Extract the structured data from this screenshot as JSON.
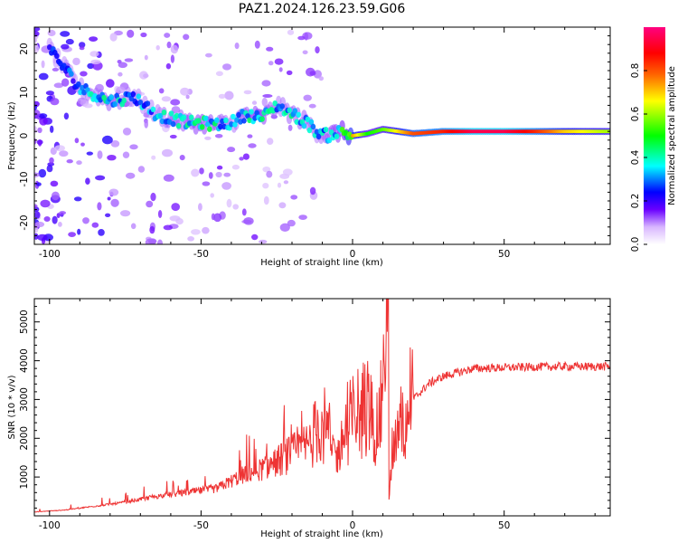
{
  "title": "PAZ1.2024.126.23.59.G06",
  "chart_data": [
    {
      "type": "heatmap",
      "xlabel": "Height of straight line (km)",
      "ylabel": "Frequency (Hz)",
      "xlim": [
        -105,
        85
      ],
      "ylim": [
        -25,
        25
      ],
      "xticks": [
        -100,
        -50,
        0,
        50
      ],
      "yticks": [
        -20,
        -10,
        0,
        10,
        20
      ],
      "grid": false,
      "colorbar": {
        "label": "Normalized spectral amplitude",
        "range": [
          0,
          1
        ],
        "ticks": [
          "0.0",
          "0.2",
          "0.4",
          "0.6",
          "0.8"
        ],
        "colors": [
          "#ffffff",
          "#d8b6ff",
          "#6a00ff",
          "#0000ff",
          "#00ffff",
          "#00ff00",
          "#ffff00",
          "#ff6600",
          "#ff0000",
          "#ff0080"
        ]
      },
      "ridge": [
        {
          "x": -100,
          "freq": 20,
          "amp": 0.2
        },
        {
          "x": -90,
          "freq": 11,
          "amp": 0.3
        },
        {
          "x": -80,
          "freq": 8,
          "amp": 0.35
        },
        {
          "x": -72,
          "freq": 9,
          "amp": 0.3
        },
        {
          "x": -65,
          "freq": 5,
          "amp": 0.3
        },
        {
          "x": -60,
          "freq": 4,
          "amp": 0.35
        },
        {
          "x": -55,
          "freq": 3,
          "amp": 0.35
        },
        {
          "x": -50,
          "freq": 3,
          "amp": 0.4
        },
        {
          "x": -45,
          "freq": 2.5,
          "amp": 0.35
        },
        {
          "x": -40,
          "freq": 3,
          "amp": 0.3
        },
        {
          "x": -35,
          "freq": 5,
          "amp": 0.35
        },
        {
          "x": -30,
          "freq": 4,
          "amp": 0.4
        },
        {
          "x": -25,
          "freq": 7,
          "amp": 0.3
        },
        {
          "x": -20,
          "freq": 5,
          "amp": 0.35
        },
        {
          "x": -15,
          "freq": 3,
          "amp": 0.35
        },
        {
          "x": -12,
          "freq": 1,
          "amp": 0.3
        },
        {
          "x": -8,
          "freq": 0,
          "amp": 0.35
        },
        {
          "x": -4,
          "freq": 1,
          "amp": 0.4
        },
        {
          "x": 0,
          "freq": 0,
          "amp": 0.75
        },
        {
          "x": 5,
          "freq": 0.5,
          "amp": 0.5
        },
        {
          "x": 10,
          "freq": 1.5,
          "amp": 0.55
        },
        {
          "x": 20,
          "freq": 0.5,
          "amp": 0.8
        },
        {
          "x": 30,
          "freq": 1,
          "amp": 0.85
        },
        {
          "x": 40,
          "freq": 1,
          "amp": 0.95
        },
        {
          "x": 50,
          "freq": 1,
          "amp": 0.95
        },
        {
          "x": 60,
          "freq": 1,
          "amp": 0.85
        },
        {
          "x": 70,
          "freq": 1,
          "amp": 0.7
        },
        {
          "x": 85,
          "freq": 1,
          "amp": 0.6
        }
      ]
    },
    {
      "type": "line",
      "xlabel": "Height of straight line (km)",
      "ylabel": "SNR (10 * v/v)",
      "xlim": [
        -105,
        85
      ],
      "ylim": [
        0,
        5600
      ],
      "xticks": [
        -100,
        -50,
        0,
        50
      ],
      "yticks": [
        1000,
        2000,
        3000,
        4000,
        5000
      ],
      "grid": false,
      "series": [
        {
          "color": "#ee3333",
          "x": [
            -105,
            -95,
            -85,
            -75,
            -65,
            -55,
            -45,
            -40,
            -35,
            -30,
            -25,
            -20,
            -15,
            -12,
            -10,
            -8,
            -5,
            -2,
            0,
            2,
            5,
            8,
            10,
            11,
            12,
            13,
            15,
            18,
            20,
            25,
            30,
            35,
            40,
            50,
            60,
            70,
            85
          ],
          "y": [
            100,
            150,
            250,
            350,
            500,
            600,
            700,
            900,
            1100,
            1200,
            1400,
            1600,
            1800,
            2200,
            2500,
            2000,
            1500,
            2300,
            2500,
            2700,
            2800,
            2200,
            3000,
            5600,
            400,
            1500,
            2200,
            2700,
            3000,
            3400,
            3600,
            3700,
            3800,
            3820,
            3840,
            3850,
            3850
          ]
        }
      ],
      "peak": {
        "x": 11.5,
        "y": 5600
      }
    }
  ]
}
